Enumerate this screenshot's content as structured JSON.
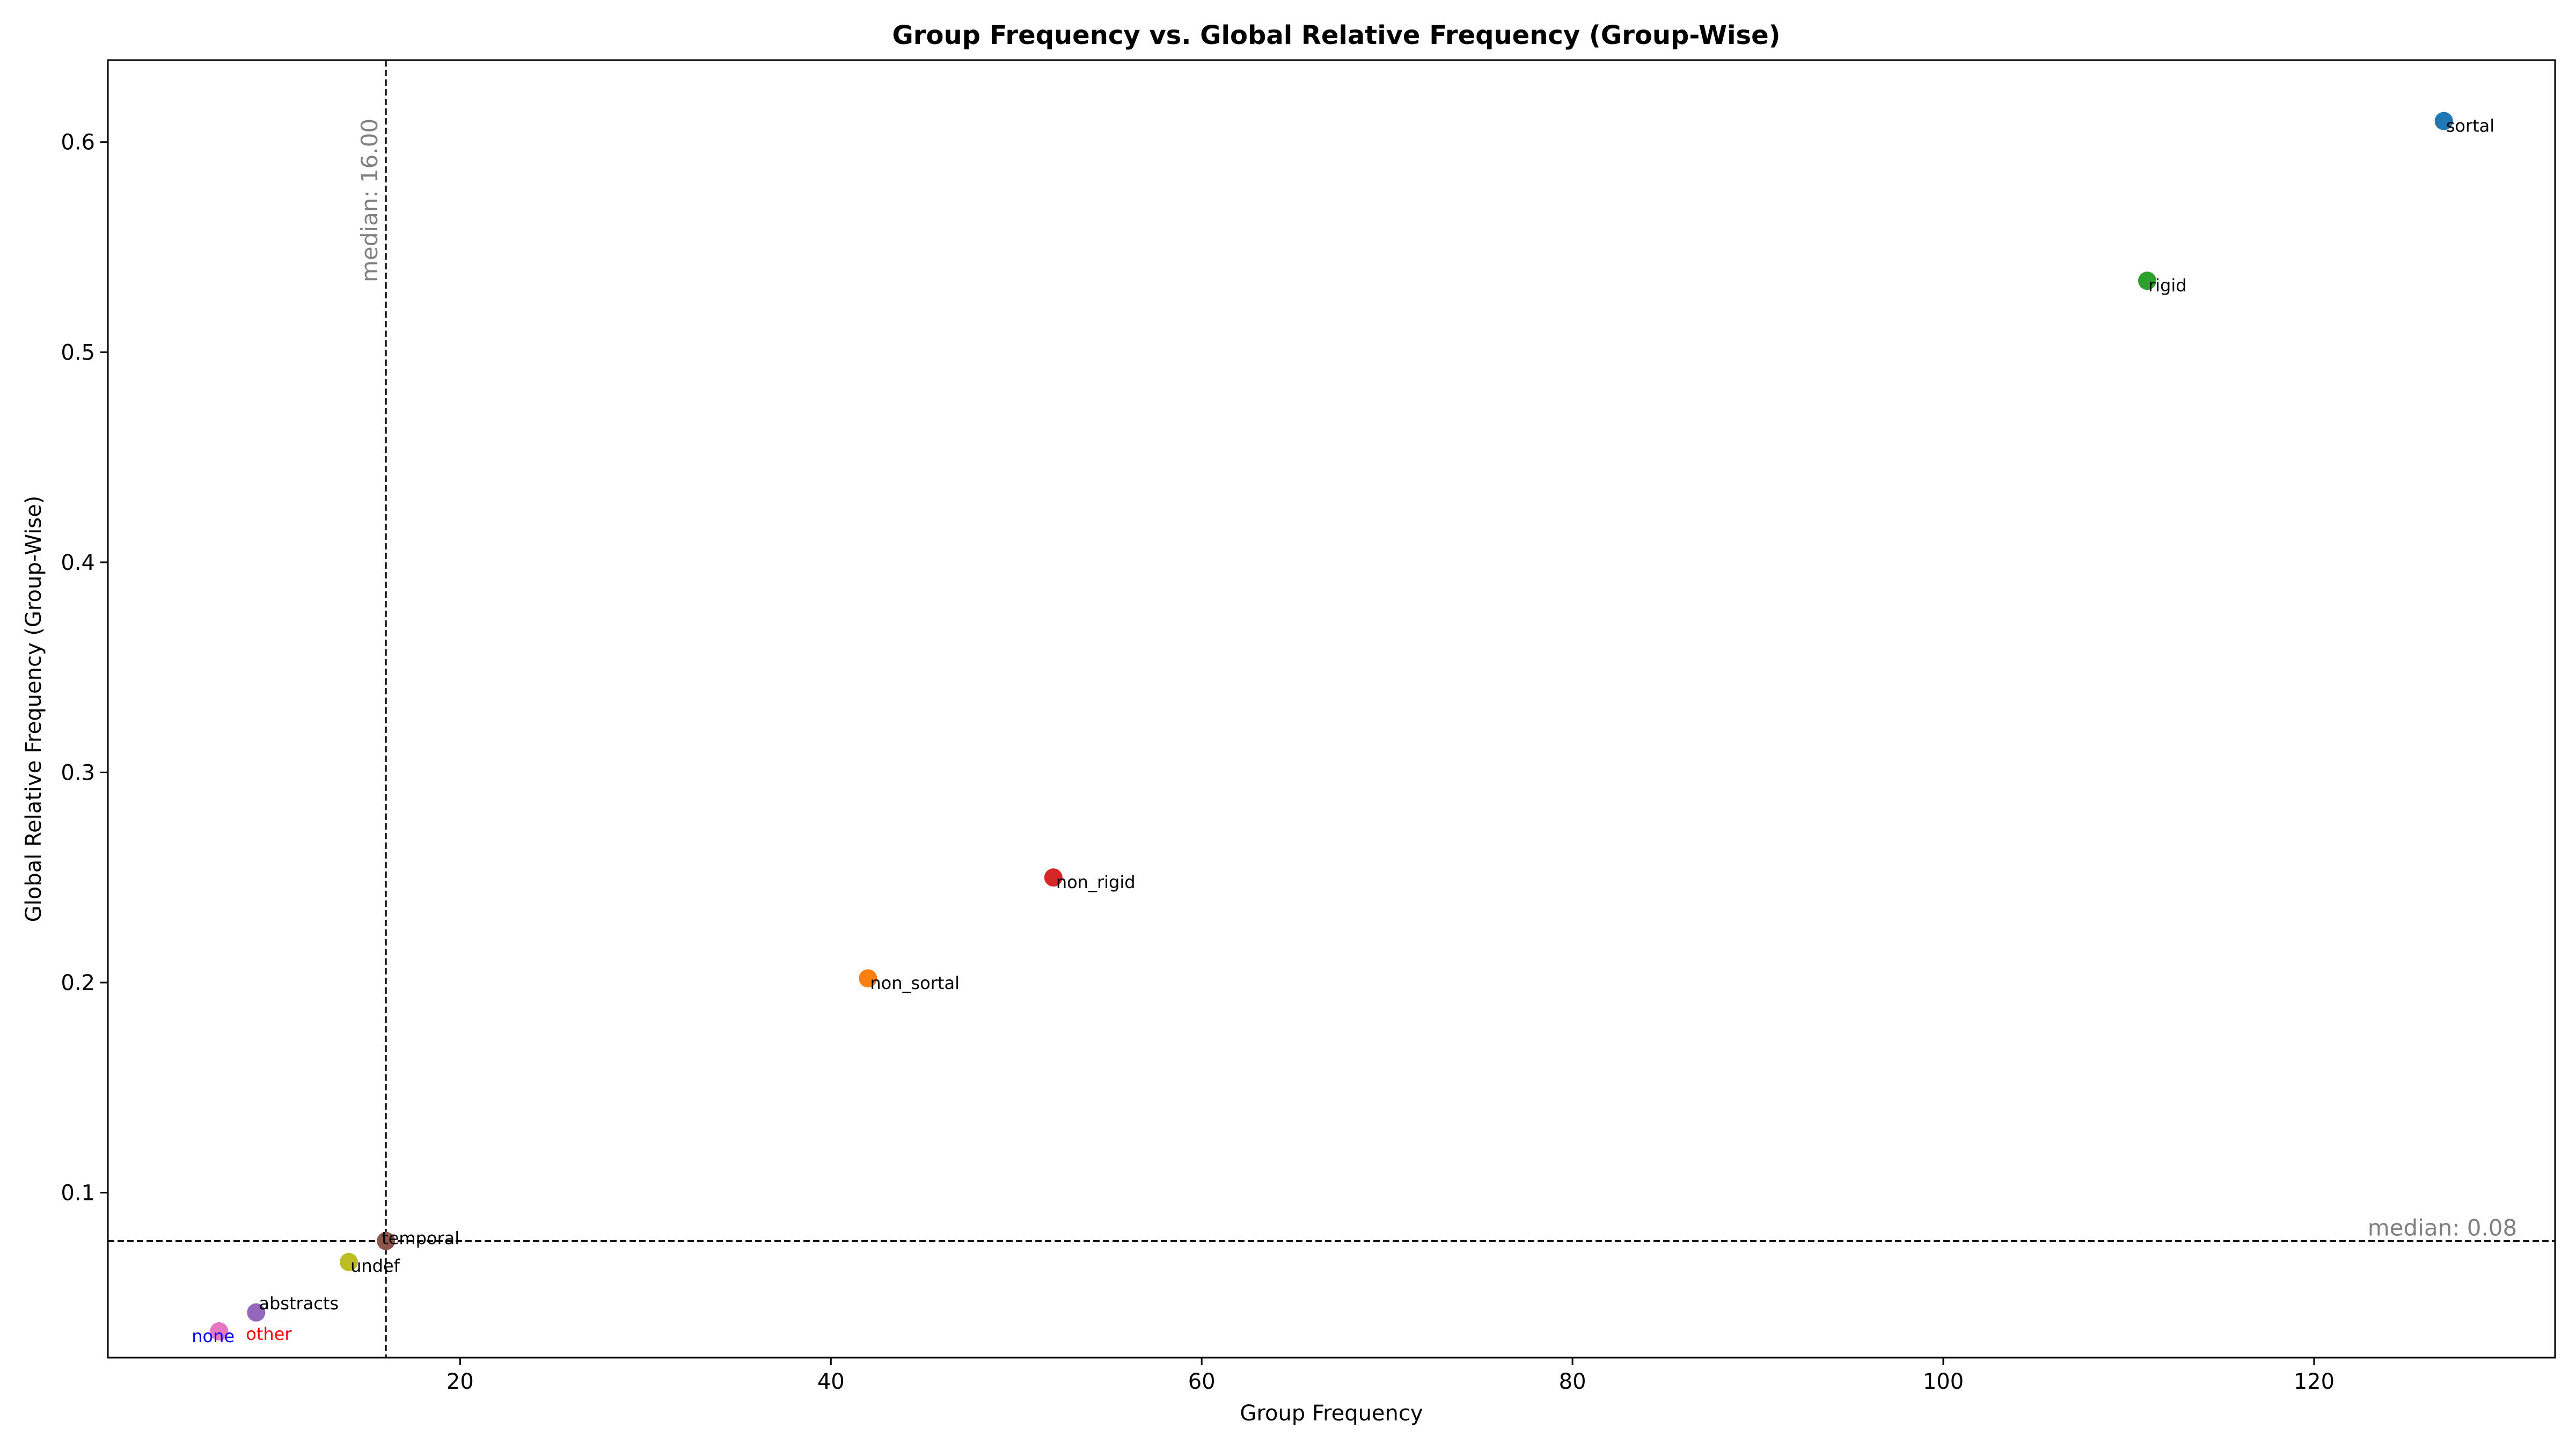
{
  "chart_data": {
    "type": "scatter",
    "title": "Group Frequency vs. Global Relative Frequency (Group-Wise)",
    "xlabel": "Group Frequency",
    "ylabel": "Global Relative Frequency (Group-Wise)",
    "xlim": [
      1,
      133
    ],
    "ylim": [
      0.0215,
      0.639
    ],
    "xticks": [
      20,
      40,
      60,
      80,
      100,
      120
    ],
    "yticks": [
      0.1,
      0.2,
      0.3,
      0.4,
      0.5,
      0.6
    ],
    "xtick_labels": [
      "20",
      "40",
      "60",
      "80",
      "100",
      "120"
    ],
    "ytick_labels": [
      "0.1",
      "0.2",
      "0.3",
      "0.4",
      "0.5",
      "0.6"
    ],
    "grid": false,
    "legend": "none",
    "points": [
      {
        "label": "sortal",
        "x": 127,
        "y": 0.61,
        "color": "#1f77b4",
        "label_color": "#000000"
      },
      {
        "label": "rigid",
        "x": 111,
        "y": 0.534,
        "color": "#2ca02c",
        "label_color": "#000000"
      },
      {
        "label": "non_rigid",
        "x": 52,
        "y": 0.25,
        "color": "#d62728",
        "label_color": "#000000"
      },
      {
        "label": "non_sortal",
        "x": 42,
        "y": 0.202,
        "color": "#ff7f0e",
        "label_color": "#000000"
      },
      {
        "label": "temporal",
        "x": 16,
        "y": 0.077,
        "color": "#8c564b",
        "label_color": "#000000"
      },
      {
        "label": "undef",
        "x": 14,
        "y": 0.067,
        "color": "#bcbd22",
        "label_color": "#000000"
      },
      {
        "label": "abstracts",
        "x": 9,
        "y": 0.043,
        "color": "#9467bd",
        "label_color": "#000000"
      },
      {
        "label": "none",
        "x": 7,
        "y": 0.034,
        "color": "#7f7f7f",
        "label_color": "#0000ff"
      },
      {
        "label": "other",
        "x": 7,
        "y": 0.034,
        "color": "#e377c2",
        "label_color": "#ff0000"
      }
    ],
    "medians": {
      "x": {
        "value": 16.0,
        "label": "median: 16.00"
      },
      "y": {
        "value": 0.077,
        "label": "median: 0.08"
      }
    }
  }
}
